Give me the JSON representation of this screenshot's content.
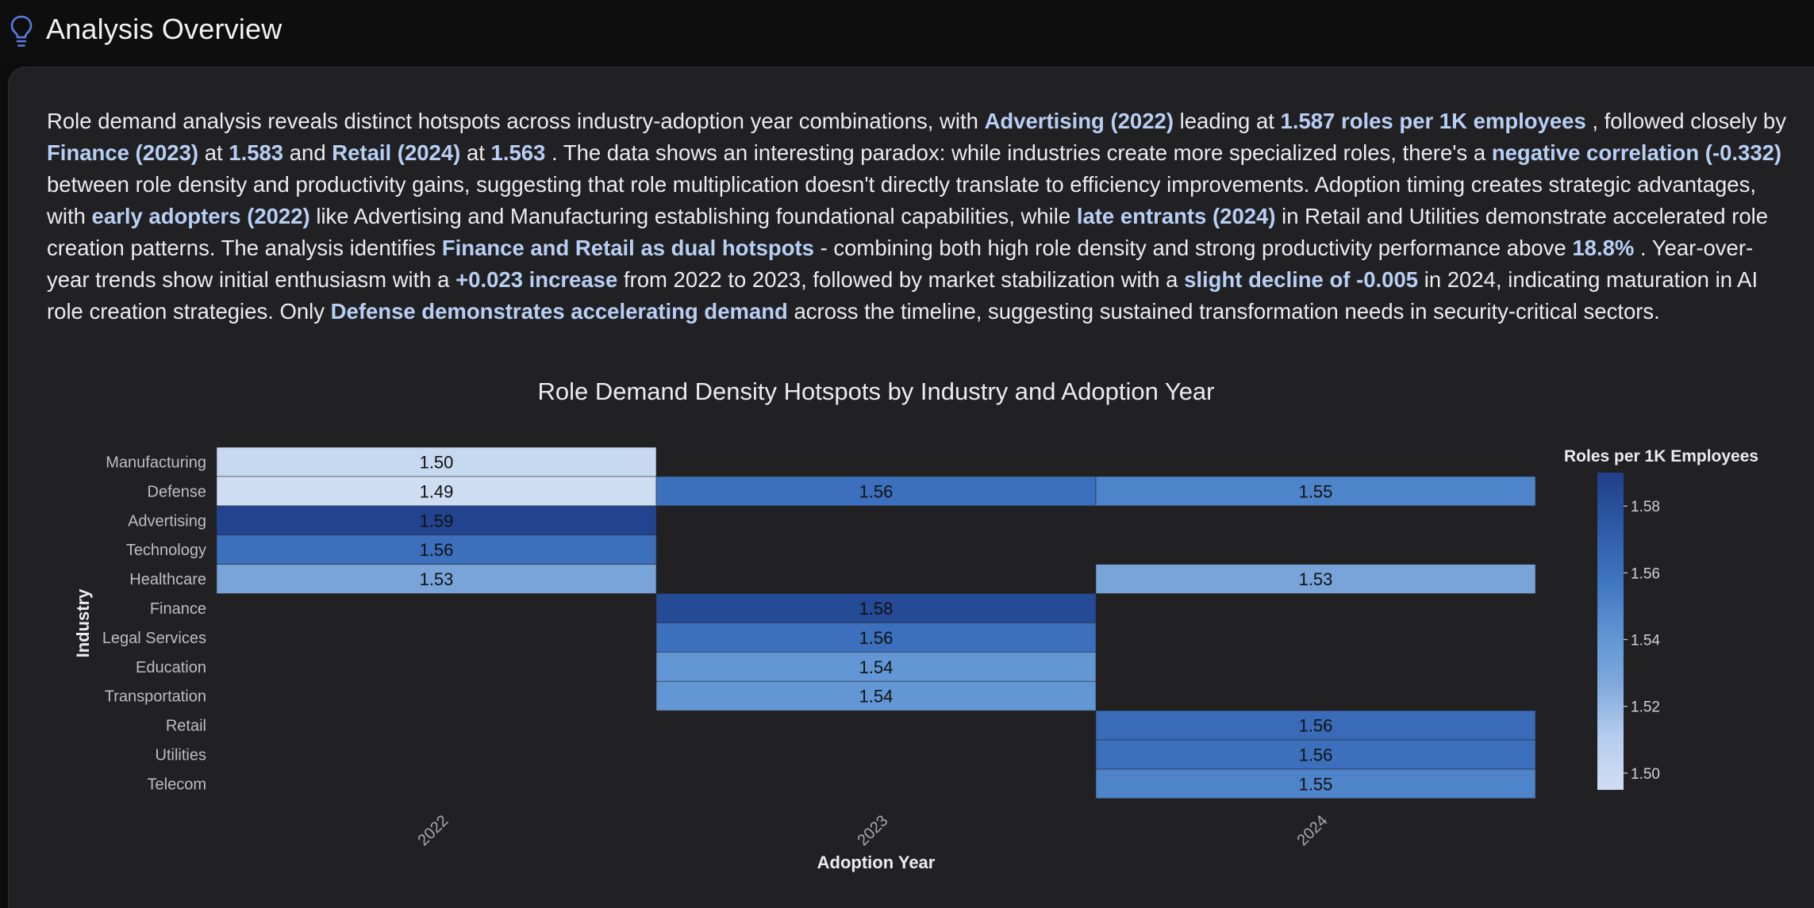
{
  "header": {
    "title": "Analysis Overview",
    "icon": "lightbulb-icon",
    "icon_color": "#5b7be0"
  },
  "summary": {
    "parts": [
      {
        "text": "Role demand analysis reveals distinct hotspots across industry-adoption year combinations, with ",
        "bold": false
      },
      {
        "text": "Advertising (2022)",
        "bold": true
      },
      {
        "text": " leading at ",
        "bold": false
      },
      {
        "text": "1.587 roles per 1K employees",
        "bold": true
      },
      {
        "text": " , followed closely by ",
        "bold": false
      },
      {
        "text": "Finance (2023)",
        "bold": true
      },
      {
        "text": " at ",
        "bold": false
      },
      {
        "text": "1.583",
        "bold": true
      },
      {
        "text": " and ",
        "bold": false
      },
      {
        "text": "Retail (2024)",
        "bold": true
      },
      {
        "text": " at ",
        "bold": false
      },
      {
        "text": "1.563",
        "bold": true
      },
      {
        "text": " . The data shows an interesting paradox: while industries create more specialized roles, there's a ",
        "bold": false
      },
      {
        "text": "negative correlation (-0.332)",
        "bold": true
      },
      {
        "text": " between role density and productivity gains, suggesting that role multiplication doesn't directly translate to efficiency improvements. Adoption timing creates strategic advantages, with ",
        "bold": false
      },
      {
        "text": "early adopters (2022)",
        "bold": true
      },
      {
        "text": " like Advertising and Manufacturing establishing foundational capabilities, while ",
        "bold": false
      },
      {
        "text": "late entrants (2024)",
        "bold": true
      },
      {
        "text": " in Retail and Utilities demonstrate accelerated role creation patterns. The analysis identifies ",
        "bold": false
      },
      {
        "text": "Finance and Retail as dual hotspots",
        "bold": true
      },
      {
        "text": " - combining both high role density and strong productivity performance above ",
        "bold": false
      },
      {
        "text": "18.8%",
        "bold": true
      },
      {
        "text": " . Year-over-year trends show initial enthusiasm with a ",
        "bold": false
      },
      {
        "text": "+0.023 increase",
        "bold": true
      },
      {
        "text": " from 2022 to 2023, followed by market stabilization with a ",
        "bold": false
      },
      {
        "text": "slight decline of -0.005",
        "bold": true
      },
      {
        "text": " in 2024, indicating maturation in AI role creation strategies. Only ",
        "bold": false
      },
      {
        "text": "Defense demonstrates accelerating demand",
        "bold": true
      },
      {
        "text": " across the timeline, suggesting sustained transformation needs in security-critical sectors.",
        "bold": false
      }
    ]
  },
  "chart_data": {
    "type": "heatmap",
    "title": "Role Demand Density Hotspots by Industry and Adoption Year",
    "xlabel": "Adoption Year",
    "ylabel": "Industry",
    "x": [
      "2022",
      "2023",
      "2024"
    ],
    "y": [
      "Manufacturing",
      "Defense",
      "Advertising",
      "Technology",
      "Healthcare",
      "Finance",
      "Legal Services",
      "Education",
      "Transportation",
      "Retail",
      "Utilities",
      "Telecom"
    ],
    "values": [
      [
        1.5,
        null,
        null
      ],
      [
        1.49,
        1.56,
        1.55
      ],
      [
        1.587,
        null,
        null
      ],
      [
        1.56,
        null,
        null
      ],
      [
        1.53,
        null,
        1.53
      ],
      [
        null,
        1.583,
        null
      ],
      [
        null,
        1.56,
        null
      ],
      [
        null,
        1.54,
        null
      ],
      [
        null,
        1.54,
        null
      ],
      [
        null,
        null,
        1.563
      ],
      [
        null,
        null,
        1.56
      ],
      [
        null,
        null,
        1.55
      ]
    ],
    "colorbar": {
      "label": "Roles per 1K Employees",
      "ticks": [
        "1.50",
        "1.52",
        "1.54",
        "1.56",
        "1.58"
      ],
      "range": [
        1.495,
        1.59
      ],
      "colors": [
        "#cfddf3",
        "#b6cdee",
        "#7fa9dc",
        "#5d93d2",
        "#3e73c0",
        "#2d59a5",
        "#1f3f8a"
      ]
    },
    "grid": false,
    "legend": "colorbar right"
  }
}
